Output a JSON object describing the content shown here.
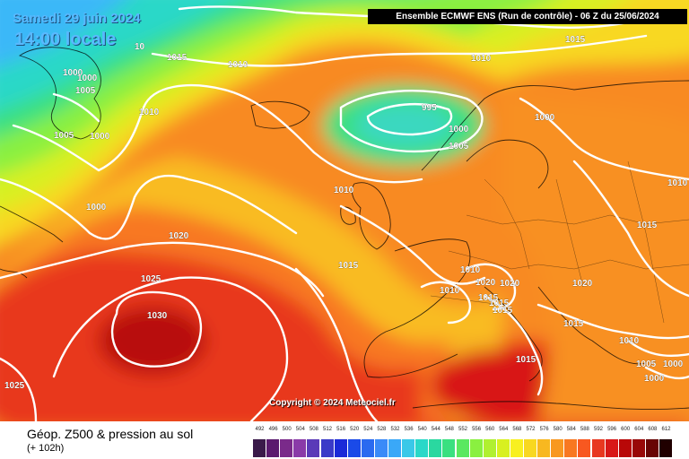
{
  "header": {
    "date": "Samedi 29 juin 2024",
    "local_time": "14:00 locale",
    "model_run": "Ensemble ECMWF ENS  (Run de contrôle)  -  06 Z du 25/06/2024"
  },
  "copyright": "Copyright © 2024 Meteociel.fr",
  "footer": {
    "parameter": "Géop. Z500 & pression au sol",
    "lead_time": "(+ 102h)"
  },
  "legend": {
    "labels": [
      "492",
      "496",
      "500",
      "504",
      "508",
      "512",
      "516",
      "520",
      "524",
      "528",
      "532",
      "536",
      "540",
      "544",
      "548",
      "552",
      "556",
      "560",
      "564",
      "568",
      "572",
      "576",
      "580",
      "584",
      "588",
      "592",
      "596",
      "600",
      "604",
      "608",
      "612"
    ],
    "colors": [
      "#3a1a4a",
      "#5a1a6e",
      "#7a2a8a",
      "#8a3aa8",
      "#5a3ab8",
      "#3a3ac8",
      "#1a2ad8",
      "#1a4ae8",
      "#2a6af0",
      "#3a8af8",
      "#3aa8f8",
      "#3ac8e8",
      "#2ad8c8",
      "#2ad8a0",
      "#3ae080",
      "#5ae860",
      "#8af040",
      "#b0f030",
      "#d8f020",
      "#f8f020",
      "#f8d820",
      "#f8b820",
      "#f89820",
      "#f87820",
      "#f85820",
      "#e83820",
      "#d81818",
      "#b80808",
      "#980808",
      "#680404",
      "#200000"
    ]
  },
  "isobar_labels": [
    {
      "text": "1015"
    },
    {
      "text": "1010"
    },
    {
      "text": "1015"
    },
    {
      "text": "1010"
    },
    {
      "text": "1000"
    },
    {
      "text": "1000"
    },
    {
      "text": "1005"
    },
    {
      "text": "1010"
    },
    {
      "text": "1005"
    },
    {
      "text": "1000"
    },
    {
      "text": "995"
    },
    {
      "text": "1000"
    },
    {
      "text": "1005"
    },
    {
      "text": "1000"
    },
    {
      "text": "1010"
    },
    {
      "text": "1000"
    },
    {
      "text": "1020"
    },
    {
      "text": "1015"
    },
    {
      "text": "1025"
    },
    {
      "text": "1030"
    },
    {
      "text": "1025"
    },
    {
      "text": "1010"
    },
    {
      "text": "1010"
    },
    {
      "text": "1020"
    },
    {
      "text": "1020"
    },
    {
      "text": "1015"
    },
    {
      "text": "1015"
    },
    {
      "text": "1015"
    },
    {
      "text": "1020"
    },
    {
      "text": "1015"
    },
    {
      "text": "1015"
    },
    {
      "text": "1015"
    },
    {
      "text": "1010"
    },
    {
      "text": "1010"
    },
    {
      "text": "1005"
    },
    {
      "text": "1000"
    },
    {
      "text": "1000"
    },
    {
      "text": "10"
    }
  ]
}
